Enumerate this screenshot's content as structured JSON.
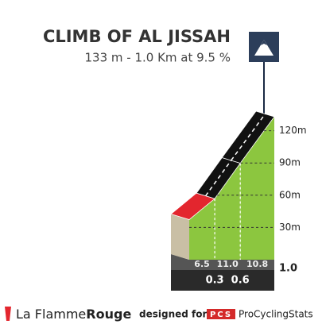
{
  "chart_data": {
    "type": "climb-profile",
    "title": "CLIMB OF AL JISSAH",
    "subtitle": "133 m - 1.0 Km at 9.5 %",
    "x": [
      0.3,
      0.6,
      1
    ],
    "values": [
      6.5,
      11,
      10.8
    ],
    "value_labels": [
      "6.5",
      "11.0",
      "10.8"
    ],
    "colors": [
      "#e3262e",
      "#111111",
      "#111111"
    ],
    "xlim": [
      0,
      1
    ],
    "xticks": [
      0.3,
      0.6,
      {
        "value": 1,
        "label": "1.0"
      }
    ],
    "ylim": [
      0,
      133
    ],
    "yticks": [
      {
        "value": 30,
        "label": "30m"
      },
      {
        "value": 60,
        "label": "60m"
      },
      {
        "value": 90,
        "label": "90m"
      },
      {
        "value": 120,
        "label": "120m"
      }
    ]
  },
  "footer": {
    "brand": "La Flamme",
    "brand_bold": "Rouge",
    "designed": "designed for",
    "logo": "PCS",
    "site": "ProCyclingStats"
  }
}
